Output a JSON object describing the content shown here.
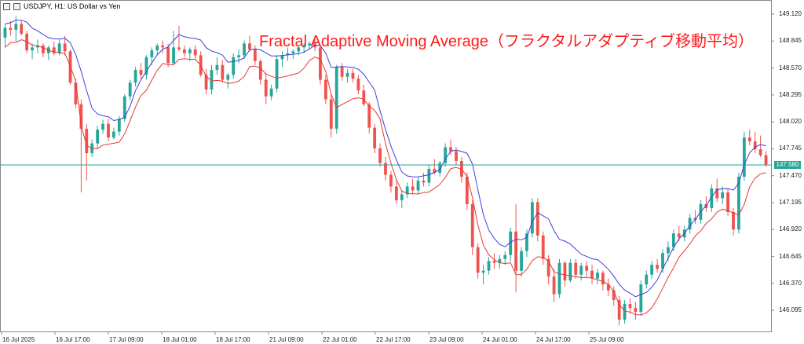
{
  "header": {
    "symbol": "USDJPY, H1:  US Dollar vs Yen"
  },
  "title": "Fractal Adaptive Moving Average（フラクタルアダプティブ移動平均）",
  "chart_data": {
    "type": "candlestick",
    "symbol": "USDJPY",
    "timeframe": "H1",
    "y_range": [
      145.88,
      149.2
    ],
    "price_ticks": [
      "149.120",
      "148.845",
      "148.570",
      "148.295",
      "148.020",
      "147.745",
      "147.470",
      "147.195",
      "146.920",
      "146.645",
      "146.370",
      "146.095"
    ],
    "x_ticks": [
      "16 Jul 2025",
      "16 Jul 17:00",
      "17 Jul 09:00",
      "18 Jul 01:00",
      "18 Jul 17:00",
      "21 Jul 09:00",
      "22 Jul 01:00",
      "22 Jul 17:00",
      "23 Jul 09:00",
      "24 Jul 01:00",
      "24 Jul 17:00",
      "25 Jul 09:00"
    ],
    "current_price": "147.580",
    "ohlc": [
      [
        148.88,
        149.02,
        148.78,
        148.98
      ],
      [
        148.98,
        149.05,
        148.9,
        148.96
      ],
      [
        148.96,
        149.1,
        148.84,
        149.02
      ],
      [
        149.02,
        149.05,
        148.9,
        148.92
      ],
      [
        148.92,
        148.95,
        148.72,
        148.75
      ],
      [
        148.75,
        148.82,
        148.66,
        148.78
      ],
      [
        148.78,
        148.86,
        148.72,
        148.8
      ],
      [
        148.8,
        148.82,
        148.68,
        148.72
      ],
      [
        148.72,
        148.8,
        148.65,
        148.78
      ],
      [
        148.78,
        148.84,
        148.7,
        148.72
      ],
      [
        148.72,
        148.86,
        148.7,
        148.82
      ],
      [
        148.82,
        148.9,
        148.7,
        148.74
      ],
      [
        148.74,
        148.76,
        148.4,
        148.42
      ],
      [
        148.42,
        148.46,
        148.16,
        148.2
      ],
      [
        148.2,
        148.25,
        147.3,
        147.95
      ],
      [
        147.95,
        148.0,
        147.42,
        147.7
      ],
      [
        147.7,
        147.84,
        147.66,
        147.8
      ],
      [
        147.8,
        147.98,
        147.75,
        147.94
      ],
      [
        147.94,
        148.04,
        147.9,
        148.0
      ],
      [
        148.0,
        148.05,
        147.82,
        147.86
      ],
      [
        147.86,
        147.96,
        147.84,
        147.92
      ],
      [
        147.92,
        148.08,
        147.88,
        148.05
      ],
      [
        148.05,
        148.3,
        148.02,
        148.28
      ],
      [
        148.28,
        148.45,
        148.24,
        148.42
      ],
      [
        148.42,
        148.58,
        148.38,
        148.55
      ],
      [
        148.55,
        148.62,
        148.46,
        148.5
      ],
      [
        148.5,
        148.7,
        148.45,
        148.68
      ],
      [
        148.68,
        148.78,
        148.6,
        148.75
      ],
      [
        148.75,
        148.82,
        148.7,
        148.8
      ],
      [
        148.8,
        148.85,
        148.72,
        148.78
      ],
      [
        148.78,
        148.82,
        148.58,
        148.62
      ],
      [
        148.62,
        148.95,
        148.6,
        148.78
      ],
      [
        148.78,
        149.0,
        148.74,
        148.76
      ],
      [
        148.76,
        148.8,
        148.68,
        148.72
      ],
      [
        148.72,
        148.78,
        148.64,
        148.76
      ],
      [
        148.76,
        148.8,
        148.66,
        148.7
      ],
      [
        148.7,
        148.74,
        148.48,
        148.5
      ],
      [
        148.5,
        148.56,
        148.3,
        148.35
      ],
      [
        148.35,
        148.6,
        148.3,
        148.55
      ],
      [
        148.55,
        148.68,
        148.5,
        148.6
      ],
      [
        148.6,
        148.65,
        148.42,
        148.45
      ],
      [
        148.45,
        148.52,
        148.36,
        148.5
      ],
      [
        148.5,
        148.72,
        148.46,
        148.68
      ],
      [
        148.68,
        148.76,
        148.62,
        148.7
      ],
      [
        148.7,
        148.85,
        148.66,
        148.82
      ],
      [
        148.82,
        148.9,
        148.74,
        148.76
      ],
      [
        148.76,
        148.8,
        148.6,
        148.64
      ],
      [
        148.64,
        148.66,
        148.4,
        148.45
      ],
      [
        148.45,
        148.52,
        148.2,
        148.28
      ],
      [
        148.28,
        148.4,
        148.24,
        148.36
      ],
      [
        148.36,
        148.7,
        148.32,
        148.66
      ],
      [
        148.66,
        148.74,
        148.58,
        148.7
      ],
      [
        148.7,
        148.78,
        148.64,
        148.72
      ],
      [
        148.72,
        148.76,
        148.66,
        148.74
      ],
      [
        148.74,
        148.8,
        148.7,
        148.78
      ],
      [
        148.78,
        148.82,
        148.72,
        148.8
      ],
      [
        148.8,
        148.84,
        148.76,
        148.82
      ],
      [
        148.82,
        148.86,
        148.74,
        148.78
      ],
      [
        148.78,
        148.8,
        148.4,
        148.45
      ],
      [
        148.45,
        148.5,
        148.2,
        148.25
      ],
      [
        148.25,
        148.3,
        147.86,
        147.95
      ],
      [
        147.95,
        148.6,
        147.9,
        148.58
      ],
      [
        148.58,
        148.62,
        148.44,
        148.48
      ],
      [
        148.48,
        148.56,
        148.42,
        148.52
      ],
      [
        148.52,
        148.56,
        148.42,
        148.46
      ],
      [
        148.46,
        148.5,
        148.3,
        148.34
      ],
      [
        148.34,
        148.4,
        148.18,
        148.2
      ],
      [
        148.2,
        148.22,
        147.9,
        147.96
      ],
      [
        147.96,
        148.0,
        147.7,
        147.75
      ],
      [
        147.75,
        147.8,
        147.56,
        147.6
      ],
      [
        147.6,
        147.66,
        147.42,
        147.48
      ],
      [
        147.48,
        147.52,
        147.3,
        147.36
      ],
      [
        147.36,
        147.42,
        147.18,
        147.22
      ],
      [
        147.22,
        147.32,
        147.14,
        147.28
      ],
      [
        147.28,
        147.4,
        147.24,
        147.36
      ],
      [
        147.36,
        147.44,
        147.28,
        147.32
      ],
      [
        147.32,
        147.46,
        147.28,
        147.42
      ],
      [
        147.42,
        147.5,
        147.36,
        147.4
      ],
      [
        147.4,
        147.58,
        147.36,
        147.54
      ],
      [
        147.54,
        147.64,
        147.48,
        147.5
      ],
      [
        147.5,
        147.62,
        147.46,
        147.6
      ],
      [
        147.6,
        147.8,
        147.56,
        147.76
      ],
      [
        147.76,
        147.84,
        147.68,
        147.72
      ],
      [
        147.72,
        147.76,
        147.58,
        147.62
      ],
      [
        147.62,
        147.66,
        147.4,
        147.46
      ],
      [
        147.46,
        147.5,
        147.12,
        147.18
      ],
      [
        147.18,
        147.22,
        146.66,
        146.74
      ],
      [
        146.74,
        146.78,
        146.42,
        146.48
      ],
      [
        146.48,
        146.56,
        146.36,
        146.5
      ],
      [
        146.5,
        146.64,
        146.46,
        146.6
      ],
      [
        146.6,
        146.68,
        146.52,
        146.58
      ],
      [
        146.58,
        146.66,
        146.52,
        146.62
      ],
      [
        146.62,
        146.7,
        146.56,
        146.66
      ],
      [
        146.66,
        146.94,
        146.6,
        146.9
      ],
      [
        146.9,
        147.18,
        146.28,
        146.5
      ],
      [
        146.5,
        146.74,
        146.44,
        146.7
      ],
      [
        146.7,
        146.92,
        146.64,
        146.88
      ],
      [
        146.88,
        147.24,
        146.84,
        147.2
      ],
      [
        147.2,
        147.24,
        146.8,
        146.86
      ],
      [
        146.86,
        146.9,
        146.56,
        146.62
      ],
      [
        146.62,
        146.66,
        146.36,
        146.44
      ],
      [
        146.44,
        146.52,
        146.18,
        146.26
      ],
      [
        146.26,
        146.62,
        146.22,
        146.58
      ],
      [
        146.58,
        146.6,
        146.34,
        146.4
      ],
      [
        146.4,
        146.62,
        146.38,
        146.58
      ],
      [
        146.58,
        146.62,
        146.42,
        146.46
      ],
      [
        146.46,
        146.58,
        146.4,
        146.55
      ],
      [
        146.55,
        146.6,
        146.44,
        146.5
      ],
      [
        146.5,
        146.56,
        146.36,
        146.42
      ],
      [
        146.42,
        146.52,
        146.36,
        146.48
      ],
      [
        146.48,
        146.5,
        146.3,
        146.36
      ],
      [
        146.36,
        146.42,
        146.24,
        146.3
      ],
      [
        146.3,
        146.34,
        146.14,
        146.2
      ],
      [
        146.2,
        146.24,
        145.94,
        146.0
      ],
      [
        146.0,
        146.2,
        145.96,
        146.16
      ],
      [
        146.16,
        146.22,
        146.06,
        146.12
      ],
      [
        146.12,
        146.18,
        146.0,
        146.08
      ],
      [
        146.08,
        146.4,
        146.04,
        146.36
      ],
      [
        146.36,
        146.5,
        146.32,
        146.46
      ],
      [
        146.46,
        146.6,
        146.42,
        146.56
      ],
      [
        146.56,
        146.62,
        146.48,
        146.52
      ],
      [
        146.52,
        146.72,
        146.48,
        146.68
      ],
      [
        146.68,
        146.8,
        146.6,
        146.74
      ],
      [
        146.74,
        146.92,
        146.7,
        146.88
      ],
      [
        146.88,
        146.96,
        146.8,
        146.84
      ],
      [
        146.84,
        146.96,
        146.8,
        146.92
      ],
      [
        146.92,
        147.08,
        146.88,
        147.04
      ],
      [
        147.04,
        147.12,
        146.98,
        147.02
      ],
      [
        147.02,
        147.22,
        146.98,
        147.18
      ],
      [
        147.18,
        147.26,
        147.1,
        147.14
      ],
      [
        147.14,
        147.38,
        147.1,
        147.34
      ],
      [
        147.34,
        147.44,
        147.2,
        147.24
      ],
      [
        147.24,
        147.36,
        147.18,
        147.3
      ],
      [
        147.3,
        147.34,
        147.06,
        147.1
      ],
      [
        147.1,
        147.14,
        146.86,
        146.92
      ],
      [
        146.92,
        147.5,
        146.88,
        147.46
      ],
      [
        147.46,
        147.92,
        147.42,
        147.86
      ],
      [
        147.86,
        147.94,
        147.78,
        147.82
      ],
      [
        147.82,
        147.92,
        147.7,
        147.74
      ],
      [
        147.74,
        147.88,
        147.66,
        147.68
      ],
      [
        147.68,
        147.72,
        147.56,
        147.58
      ]
    ]
  }
}
